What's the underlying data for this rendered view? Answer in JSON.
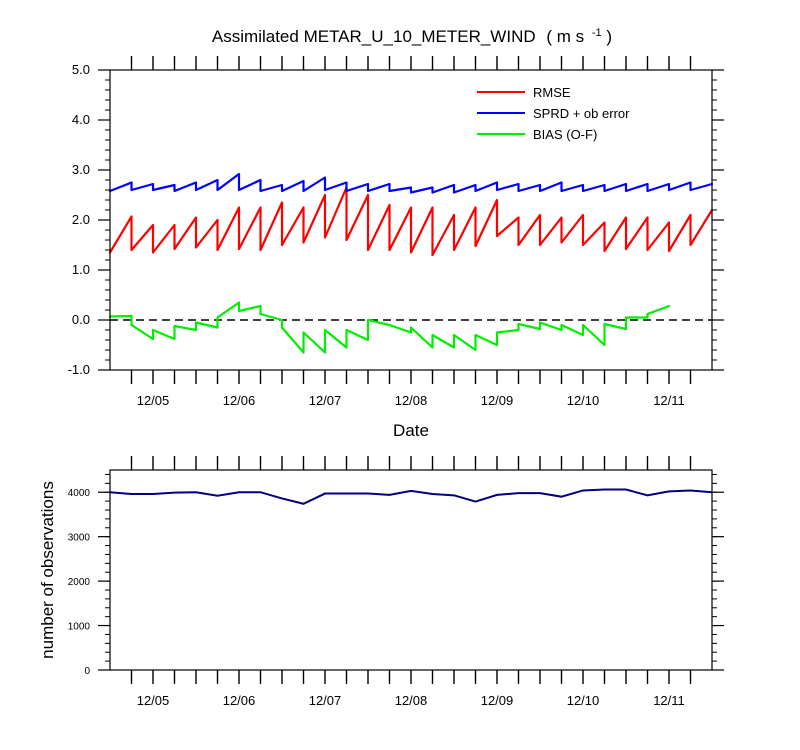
{
  "chart_data": [
    {
      "type": "line",
      "title": "Assimilated METAR_U_10_METER_WIND",
      "title_units": "( m s",
      "title_units_sup": "-1",
      "title_units_close": " )",
      "xlabel": "Date",
      "ylabel": "",
      "x_tick_labels": [
        "12/05",
        "12/06",
        "12/07",
        "12/08",
        "12/09",
        "12/10",
        "12/11"
      ],
      "y_tick_labels": [
        "5.0",
        "4.0",
        "3.0",
        "2.0",
        "1.0",
        "0.0",
        "-1.0"
      ],
      "ylim": [
        -1.0,
        5.0
      ],
      "xlim": [
        0,
        28
      ],
      "legend_position": "top-right",
      "zero_line": "dashed black",
      "series": [
        {
          "name": "RMSE",
          "color": "#ff0000",
          "segments": [
            [
              [
                0.0,
                1.35
              ],
              [
                1.0,
                2.07
              ]
            ],
            [
              [
                1.0,
                1.4
              ],
              [
                2.0,
                1.9
              ]
            ],
            [
              [
                2.0,
                1.35
              ],
              [
                3.0,
                1.9
              ]
            ],
            [
              [
                3.0,
                1.42
              ],
              [
                4.0,
                2.05
              ]
            ],
            [
              [
                4.0,
                1.45
              ],
              [
                5.0,
                2.0
              ]
            ],
            [
              [
                5.0,
                1.4
              ],
              [
                6.0,
                2.25
              ]
            ],
            [
              [
                6.0,
                1.42
              ],
              [
                7.0,
                2.25
              ]
            ],
            [
              [
                7.0,
                1.4
              ],
              [
                8.0,
                2.35
              ]
            ],
            [
              [
                8.0,
                1.5
              ],
              [
                9.0,
                2.25
              ]
            ],
            [
              [
                9.0,
                1.55
              ],
              [
                10.0,
                2.5
              ]
            ],
            [
              [
                10.0,
                1.65
              ],
              [
                11.0,
                2.65
              ]
            ],
            [
              [
                11.0,
                1.6
              ],
              [
                12.0,
                2.5
              ]
            ],
            [
              [
                12.0,
                1.4
              ],
              [
                13.0,
                2.3
              ]
            ],
            [
              [
                13.0,
                1.4
              ],
              [
                14.0,
                2.25
              ]
            ],
            [
              [
                14.0,
                1.35
              ],
              [
                15.0,
                2.25
              ]
            ],
            [
              [
                15.0,
                1.3
              ],
              [
                16.0,
                2.1
              ]
            ],
            [
              [
                16.0,
                1.4
              ],
              [
                17.0,
                2.25
              ]
            ],
            [
              [
                17.0,
                1.48
              ],
              [
                18.0,
                2.4
              ]
            ],
            [
              [
                18.0,
                1.68
              ],
              [
                19.0,
                2.05
              ]
            ],
            [
              [
                19.0,
                1.5
              ],
              [
                20.0,
                2.1
              ]
            ],
            [
              [
                20.0,
                1.5
              ],
              [
                21.0,
                2.05
              ]
            ],
            [
              [
                21.0,
                1.55
              ],
              [
                22.0,
                2.1
              ]
            ],
            [
              [
                22.0,
                1.5
              ],
              [
                23.0,
                1.95
              ]
            ],
            [
              [
                23.0,
                1.38
              ],
              [
                24.0,
                2.05
              ]
            ],
            [
              [
                24.0,
                1.42
              ],
              [
                25.0,
                2.05
              ]
            ],
            [
              [
                25.0,
                1.4
              ],
              [
                26.0,
                1.95
              ]
            ],
            [
              [
                26.0,
                1.38
              ],
              [
                27.0,
                2.1
              ]
            ],
            [
              [
                27.0,
                1.5
              ],
              [
                28.0,
                2.2
              ]
            ]
          ]
        },
        {
          "name": "SPRD + ob error",
          "color": "#0000ff",
          "segments": [
            [
              [
                0.0,
                2.58
              ],
              [
                1.0,
                2.75
              ]
            ],
            [
              [
                1.0,
                2.6
              ],
              [
                2.0,
                2.72
              ]
            ],
            [
              [
                2.0,
                2.6
              ],
              [
                3.0,
                2.7
              ]
            ],
            [
              [
                3.0,
                2.58
              ],
              [
                4.0,
                2.75
              ]
            ],
            [
              [
                4.0,
                2.6
              ],
              [
                5.0,
                2.8
              ]
            ],
            [
              [
                5.0,
                2.6
              ],
              [
                6.0,
                2.92
              ]
            ],
            [
              [
                6.0,
                2.6
              ],
              [
                7.0,
                2.8
              ]
            ],
            [
              [
                7.0,
                2.58
              ],
              [
                8.0,
                2.7
              ]
            ],
            [
              [
                8.0,
                2.58
              ],
              [
                9.0,
                2.78
              ]
            ],
            [
              [
                9.0,
                2.58
              ],
              [
                10.0,
                2.85
              ]
            ],
            [
              [
                10.0,
                2.6
              ],
              [
                11.0,
                2.75
              ]
            ],
            [
              [
                11.0,
                2.58
              ],
              [
                12.0,
                2.72
              ]
            ],
            [
              [
                12.0,
                2.58
              ],
              [
                13.0,
                2.72
              ]
            ],
            [
              [
                13.0,
                2.58
              ],
              [
                14.0,
                2.65
              ]
            ],
            [
              [
                14.0,
                2.55
              ],
              [
                15.0,
                2.65
              ]
            ],
            [
              [
                15.0,
                2.55
              ],
              [
                16.0,
                2.7
              ]
            ],
            [
              [
                16.0,
                2.55
              ],
              [
                17.0,
                2.7
              ]
            ],
            [
              [
                17.0,
                2.58
              ],
              [
                18.0,
                2.75
              ]
            ],
            [
              [
                18.0,
                2.6
              ],
              [
                19.0,
                2.72
              ]
            ],
            [
              [
                19.0,
                2.58
              ],
              [
                20.0,
                2.7
              ]
            ],
            [
              [
                20.0,
                2.58
              ],
              [
                21.0,
                2.75
              ]
            ],
            [
              [
                21.0,
                2.58
              ],
              [
                22.0,
                2.7
              ]
            ],
            [
              [
                22.0,
                2.58
              ],
              [
                23.0,
                2.7
              ]
            ],
            [
              [
                23.0,
                2.58
              ],
              [
                24.0,
                2.72
              ]
            ],
            [
              [
                24.0,
                2.58
              ],
              [
                25.0,
                2.72
              ]
            ],
            [
              [
                25.0,
                2.58
              ],
              [
                26.0,
                2.72
              ]
            ],
            [
              [
                26.0,
                2.6
              ],
              [
                27.0,
                2.75
              ]
            ],
            [
              [
                27.0,
                2.6
              ],
              [
                28.0,
                2.72
              ]
            ]
          ]
        },
        {
          "name": "BIAS (O-F)",
          "color": "#00ee00",
          "segments": [
            [
              [
                0.0,
                0.07
              ],
              [
                1.0,
                0.08
              ]
            ],
            [
              [
                1.0,
                -0.1
              ],
              [
                2.0,
                -0.38
              ]
            ],
            [
              [
                2.0,
                -0.2
              ],
              [
                3.0,
                -0.38
              ]
            ],
            [
              [
                3.0,
                -0.12
              ],
              [
                4.0,
                -0.2
              ]
            ],
            [
              [
                4.0,
                -0.05
              ],
              [
                5.0,
                -0.15
              ]
            ],
            [
              [
                5.0,
                0.05
              ],
              [
                6.0,
                0.35
              ]
            ],
            [
              [
                6.0,
                0.18
              ],
              [
                7.0,
                0.28
              ]
            ],
            [
              [
                7.0,
                0.12
              ],
              [
                8.0,
                0.0
              ]
            ],
            [
              [
                8.0,
                -0.15
              ],
              [
                9.0,
                -0.65
              ]
            ],
            [
              [
                9.0,
                -0.25
              ],
              [
                10.0,
                -0.65
              ]
            ],
            [
              [
                10.0,
                -0.2
              ],
              [
                11.0,
                -0.55
              ]
            ],
            [
              [
                11.0,
                -0.2
              ],
              [
                12.0,
                -0.4
              ]
            ],
            [
              [
                12.0,
                0.0
              ],
              [
                13.0,
                -0.1
              ]
            ],
            [
              [
                13.0,
                -0.1
              ],
              [
                14.0,
                -0.25
              ]
            ],
            [
              [
                14.0,
                -0.15
              ],
              [
                15.0,
                -0.55
              ]
            ],
            [
              [
                15.0,
                -0.3
              ],
              [
                16.0,
                -0.55
              ]
            ],
            [
              [
                16.0,
                -0.3
              ],
              [
                17.0,
                -0.6
              ]
            ],
            [
              [
                17.0,
                -0.3
              ],
              [
                18.0,
                -0.5
              ]
            ],
            [
              [
                18.0,
                -0.25
              ],
              [
                19.0,
                -0.2
              ]
            ],
            [
              [
                19.0,
                -0.08
              ],
              [
                20.0,
                -0.18
              ]
            ],
            [
              [
                20.0,
                -0.05
              ],
              [
                21.0,
                -0.2
              ]
            ],
            [
              [
                21.0,
                -0.1
              ],
              [
                22.0,
                -0.3
              ]
            ],
            [
              [
                22.0,
                -0.1
              ],
              [
                23.0,
                -0.5
              ]
            ],
            [
              [
                23.0,
                -0.08
              ],
              [
                24.0,
                -0.18
              ]
            ],
            [
              [
                24.0,
                0.05
              ],
              [
                25.0,
                0.05
              ]
            ],
            [
              [
                25.0,
                0.12
              ],
              [
                26.0,
                0.28
              ]
            ]
          ]
        }
      ]
    },
    {
      "type": "line",
      "xlabel": "",
      "ylabel": "number of observations",
      "x_tick_labels": [
        "12/05",
        "12/06",
        "12/07",
        "12/08",
        "12/09",
        "12/10",
        "12/11"
      ],
      "y_tick_labels": [
        "0",
        "1000",
        "2000",
        "3000",
        "4000"
      ],
      "ylim": [
        0,
        4500
      ],
      "xlim": [
        0,
        28
      ],
      "series": [
        {
          "name": "",
          "color": "#000080",
          "x": [
            0,
            1,
            2,
            3,
            4,
            5,
            6,
            7,
            8,
            9,
            10,
            11,
            12,
            13,
            14,
            15,
            16,
            17,
            18,
            19,
            20,
            21,
            22,
            23,
            24,
            25,
            26,
            27,
            28
          ],
          "values": [
            4000,
            3960,
            3960,
            3990,
            4000,
            3920,
            4000,
            4000,
            3860,
            3740,
            3970,
            3970,
            3970,
            3940,
            4030,
            3960,
            3930,
            3790,
            3940,
            3980,
            3980,
            3900,
            4040,
            4060,
            4060,
            3930,
            4020,
            4040,
            4000
          ]
        }
      ]
    }
  ]
}
